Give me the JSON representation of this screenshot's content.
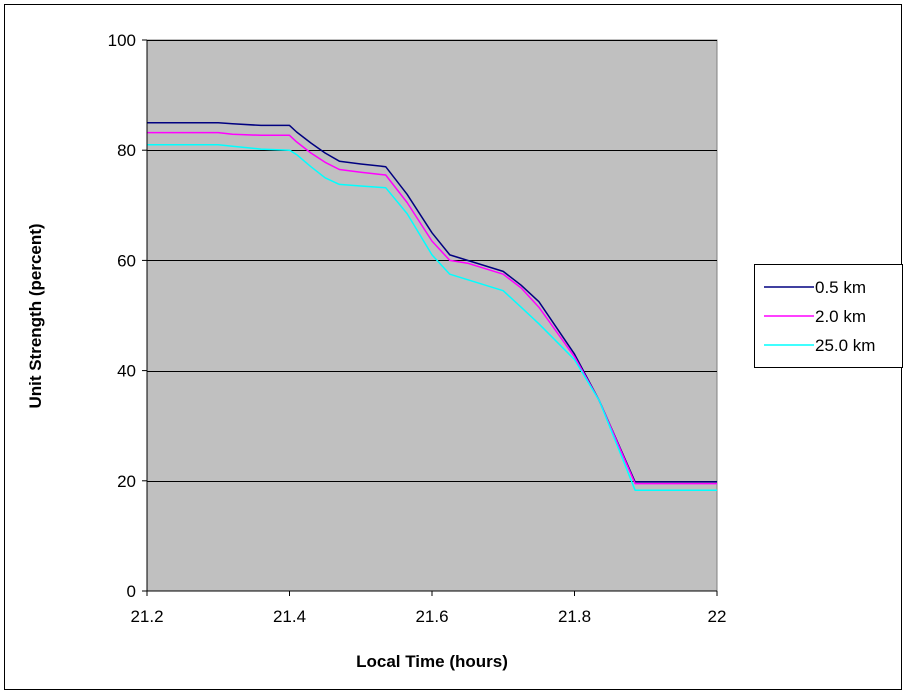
{
  "chart_data": {
    "type": "line",
    "title": "",
    "xlabel": "Local Time (hours)",
    "ylabel": "Unit Strength (percent)",
    "xlim": [
      21.2,
      22
    ],
    "ylim": [
      0,
      100
    ],
    "x_ticks": [
      "21.2",
      "21.4",
      "21.6",
      "21.8",
      "22"
    ],
    "y_ticks": [
      "0",
      "20",
      "40",
      "60",
      "80",
      "100"
    ],
    "grid": "horizontal",
    "plot_background": "#c0c0c0",
    "legend_position": "right",
    "series": [
      {
        "name": "0.5 km",
        "color": "#000080",
        "x": [
          21.2,
          21.3,
          21.32,
          21.36,
          21.4,
          21.41,
          21.43,
          21.45,
          21.47,
          21.5,
          21.535,
          21.565,
          21.6,
          21.625,
          21.65,
          21.7,
          21.725,
          21.75,
          21.8,
          21.835,
          21.885,
          22.0
        ],
        "y": [
          85,
          85,
          84.8,
          84.5,
          84.5,
          83.3,
          81.3,
          79.5,
          78.0,
          77.5,
          77.0,
          72.0,
          65.0,
          61.0,
          60.0,
          58.0,
          55.5,
          52.5,
          43.0,
          34.5,
          19.8,
          19.8
        ]
      },
      {
        "name": "2.0 km",
        "color": "#ff00ff",
        "x": [
          21.2,
          21.3,
          21.32,
          21.36,
          21.4,
          21.41,
          21.43,
          21.45,
          21.47,
          21.5,
          21.535,
          21.565,
          21.6,
          21.625,
          21.65,
          21.7,
          21.725,
          21.75,
          21.8,
          21.835,
          21.885,
          22.0
        ],
        "y": [
          83.2,
          83.2,
          82.9,
          82.7,
          82.7,
          81.5,
          79.5,
          77.8,
          76.5,
          76.0,
          75.5,
          70.5,
          63.5,
          60.0,
          59.5,
          57.5,
          55.0,
          51.5,
          42.5,
          34.5,
          19.5,
          19.5
        ]
      },
      {
        "name": "25.0 km",
        "color": "#00ffff",
        "x": [
          21.2,
          21.3,
          21.32,
          21.36,
          21.4,
          21.41,
          21.43,
          21.45,
          21.47,
          21.5,
          21.535,
          21.565,
          21.6,
          21.625,
          21.65,
          21.7,
          21.725,
          21.75,
          21.8,
          21.835,
          21.885,
          22.0
        ],
        "y": [
          81,
          81,
          80.7,
          80.2,
          80.0,
          79.2,
          77.0,
          75.0,
          73.8,
          73.5,
          73.2,
          68.5,
          61.0,
          57.5,
          56.5,
          54.5,
          51.5,
          48.5,
          42.0,
          34.5,
          18.3,
          18.3
        ]
      }
    ]
  }
}
